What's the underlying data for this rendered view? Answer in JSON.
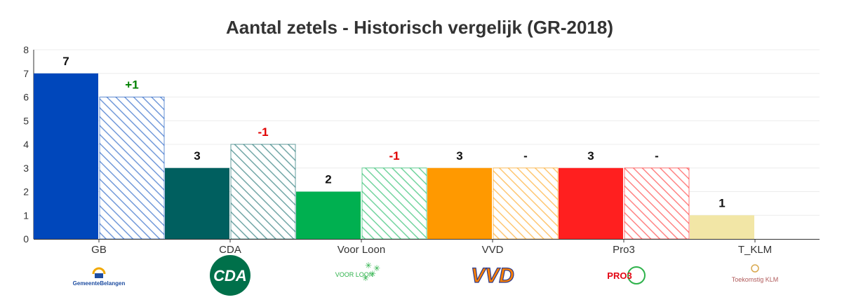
{
  "chart_data": {
    "type": "bar",
    "title": "Aantal zetels - Historisch vergelijk (GR-2018)",
    "xlabel": "",
    "ylabel": "",
    "ylim": [
      0,
      8
    ],
    "yticks": [
      "0",
      "1",
      "2",
      "3",
      "4",
      "5",
      "6",
      "7",
      "8"
    ],
    "grid": true,
    "legend": "none",
    "categories": [
      "GB",
      "CDA",
      "Voor Loon",
      "VVD",
      "Pro3",
      "T_KLM"
    ],
    "series": [
      {
        "values": [
          7,
          3,
          2,
          3,
          3,
          1
        ],
        "style": "solid"
      },
      {
        "values": [
          6,
          4,
          3,
          3,
          3,
          null
        ],
        "style": "hatched"
      }
    ],
    "colors": [
      "#0047BB",
      "#005F5F",
      "#00B050",
      "#FF9900",
      "#FF1F1F",
      "#F2E6A6"
    ],
    "value_labels": [
      "7",
      "3",
      "2",
      "3",
      "3",
      "1"
    ],
    "delta_labels": [
      "+1",
      "-1",
      "-1",
      "-",
      "-",
      ""
    ],
    "delta_colors": [
      "#008000",
      "#E00000",
      "#E00000",
      "#111111",
      "#111111",
      "#111111"
    ]
  },
  "logos": [
    {
      "name": "gemeentebelangen-logo",
      "text": "GemeenteBelangen",
      "color": "#1E4DA1"
    },
    {
      "name": "cda-logo",
      "text": "CDA",
      "color": "#00704A"
    },
    {
      "name": "voor-loon-logo",
      "text": "VOOR LOON",
      "color": "#2EB24B"
    },
    {
      "name": "vvd-logo",
      "text": "VVD",
      "color": "#FF7F00"
    },
    {
      "name": "pro3-logo",
      "text": "PRO3",
      "color": "#E30613"
    },
    {
      "name": "toekomstig-klm-logo",
      "text": "Toekomstig KLM",
      "color": "#B05A5A"
    }
  ]
}
